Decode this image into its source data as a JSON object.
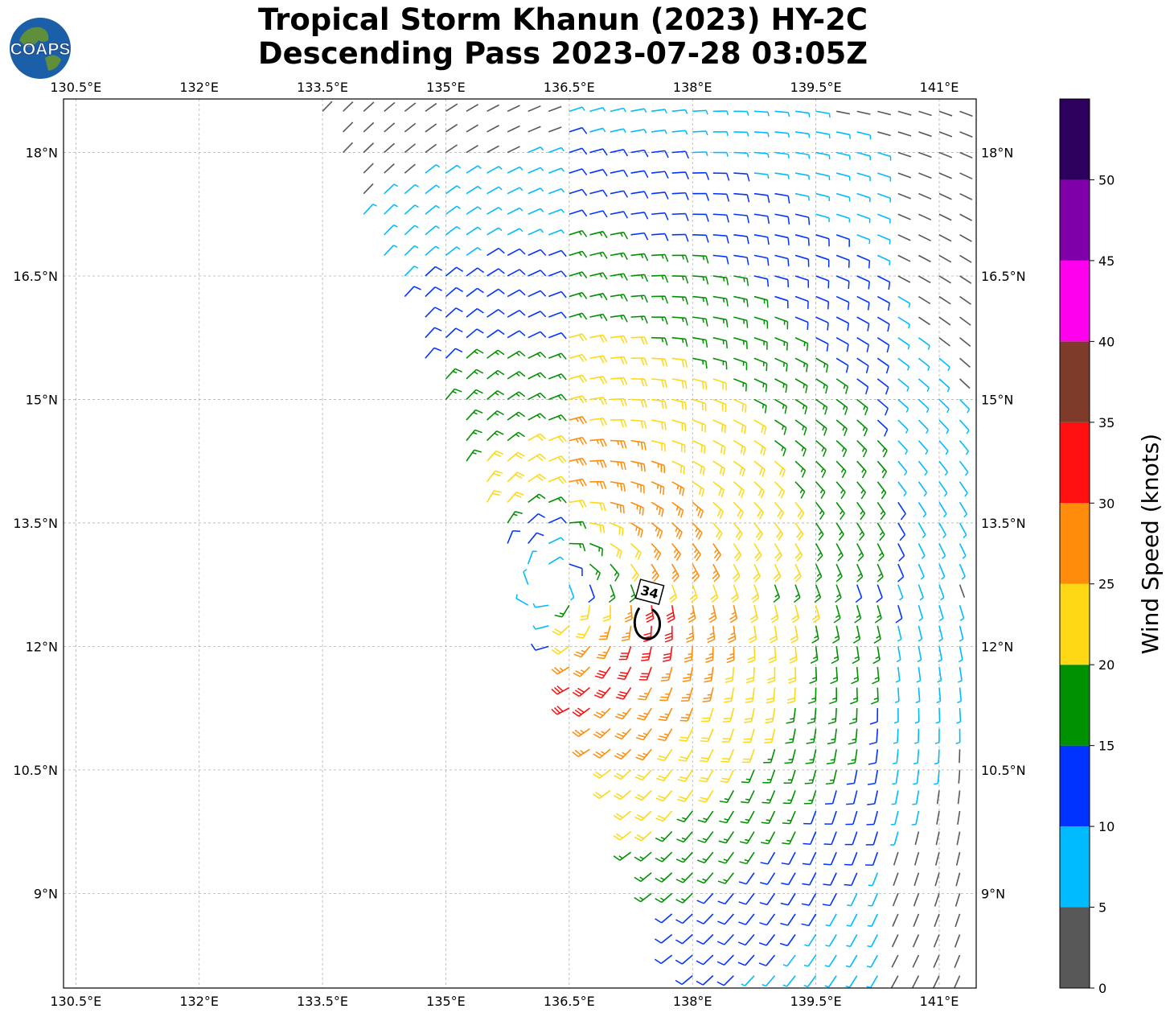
{
  "title": {
    "line1": "Tropical Storm Khanun (2023) HY-2C",
    "line2": "Descending Pass 2023-07-28 03:05Z"
  },
  "logo": {
    "text": "COAPS"
  },
  "map": {
    "lon_range": [
      130.35,
      141.45
    ],
    "lat_range": [
      7.85,
      18.65
    ],
    "lon_ticks": [
      "130.5°E",
      "132°E",
      "133.5°E",
      "135°E",
      "136.5°E",
      "138°E",
      "139.5°E",
      "141°E"
    ],
    "lon_tick_values": [
      130.5,
      132,
      133.5,
      135,
      136.5,
      138,
      139.5,
      141
    ],
    "lat_ticks": [
      "18°N",
      "16.5°N",
      "15°N",
      "13.5°N",
      "12°N",
      "10.5°N",
      "9°N"
    ],
    "lat_tick_values": [
      18,
      16.5,
      15,
      13.5,
      12,
      10.5,
      9
    ],
    "gridlines": true,
    "storm_center": {
      "lon": 136.3,
      "lat": 12.75
    },
    "wind_contour": {
      "label": "34",
      "lon": 137.45,
      "lat": 12.35
    },
    "icon": "wind-barb-icon"
  },
  "colorbar": {
    "title": "Wind Speed (knots)",
    "tick_labels": [
      "0",
      "5",
      "10",
      "15",
      "20",
      "25",
      "30",
      "35",
      "40",
      "45",
      "50"
    ],
    "bins": [
      {
        "range": [
          0,
          5
        ],
        "color": "#585858"
      },
      {
        "range": [
          5,
          10
        ],
        "color": "#00bbff"
      },
      {
        "range": [
          10,
          15
        ],
        "color": "#0033ff"
      },
      {
        "range": [
          15,
          20
        ],
        "color": "#009100"
      },
      {
        "range": [
          20,
          25
        ],
        "color": "#ffd815"
      },
      {
        "range": [
          25,
          30
        ],
        "color": "#ff8c0a"
      },
      {
        "range": [
          30,
          35
        ],
        "color": "#ff0f0f"
      },
      {
        "range": [
          35,
          40
        ],
        "color": "#7f3b29"
      },
      {
        "range": [
          40,
          45
        ],
        "color": "#ff00ee"
      },
      {
        "range": [
          45,
          50
        ],
        "color": "#7f00a9"
      },
      {
        "range": [
          50,
          55
        ],
        "color": "#2c005c"
      }
    ]
  }
}
